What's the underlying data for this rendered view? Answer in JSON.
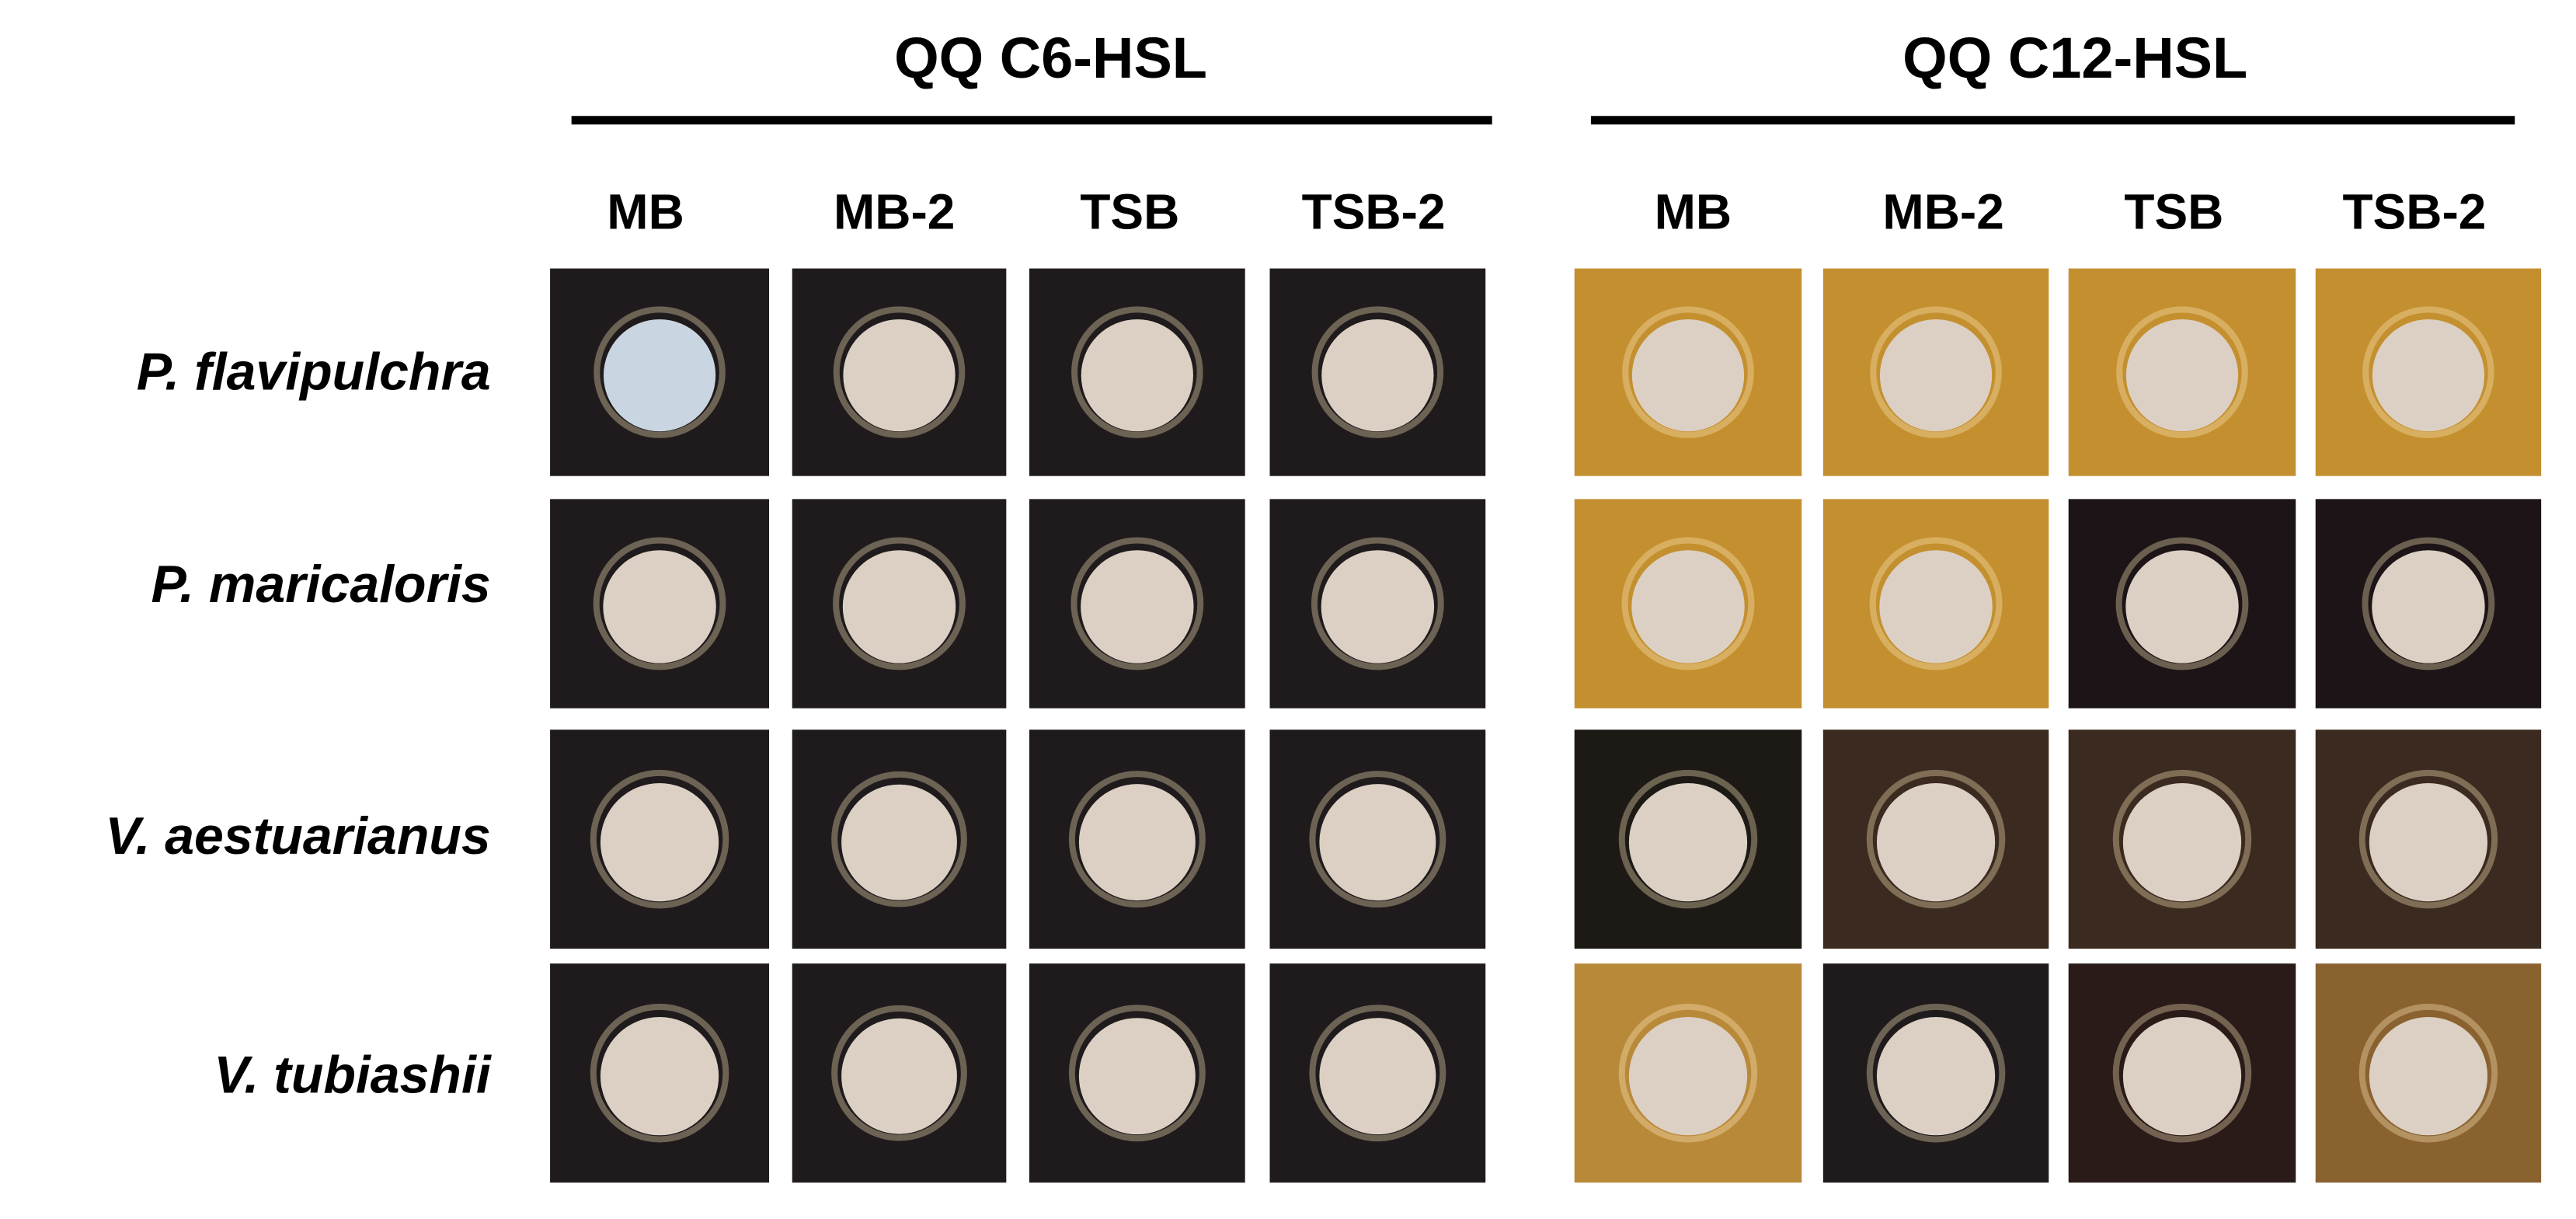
{
  "groups": [
    {
      "title": "QQ C6-HSL",
      "columns": [
        "MB",
        "MB-2",
        "TSB",
        "TSB-2"
      ]
    },
    {
      "title": "QQ C12-HSL",
      "columns": [
        "MB",
        "MB-2",
        "TSB",
        "TSB-2"
      ]
    }
  ],
  "rows": [
    "P. flavipulchra",
    "P. maricaloris",
    "V. aestuarianus",
    "V. tubiashii"
  ]
}
